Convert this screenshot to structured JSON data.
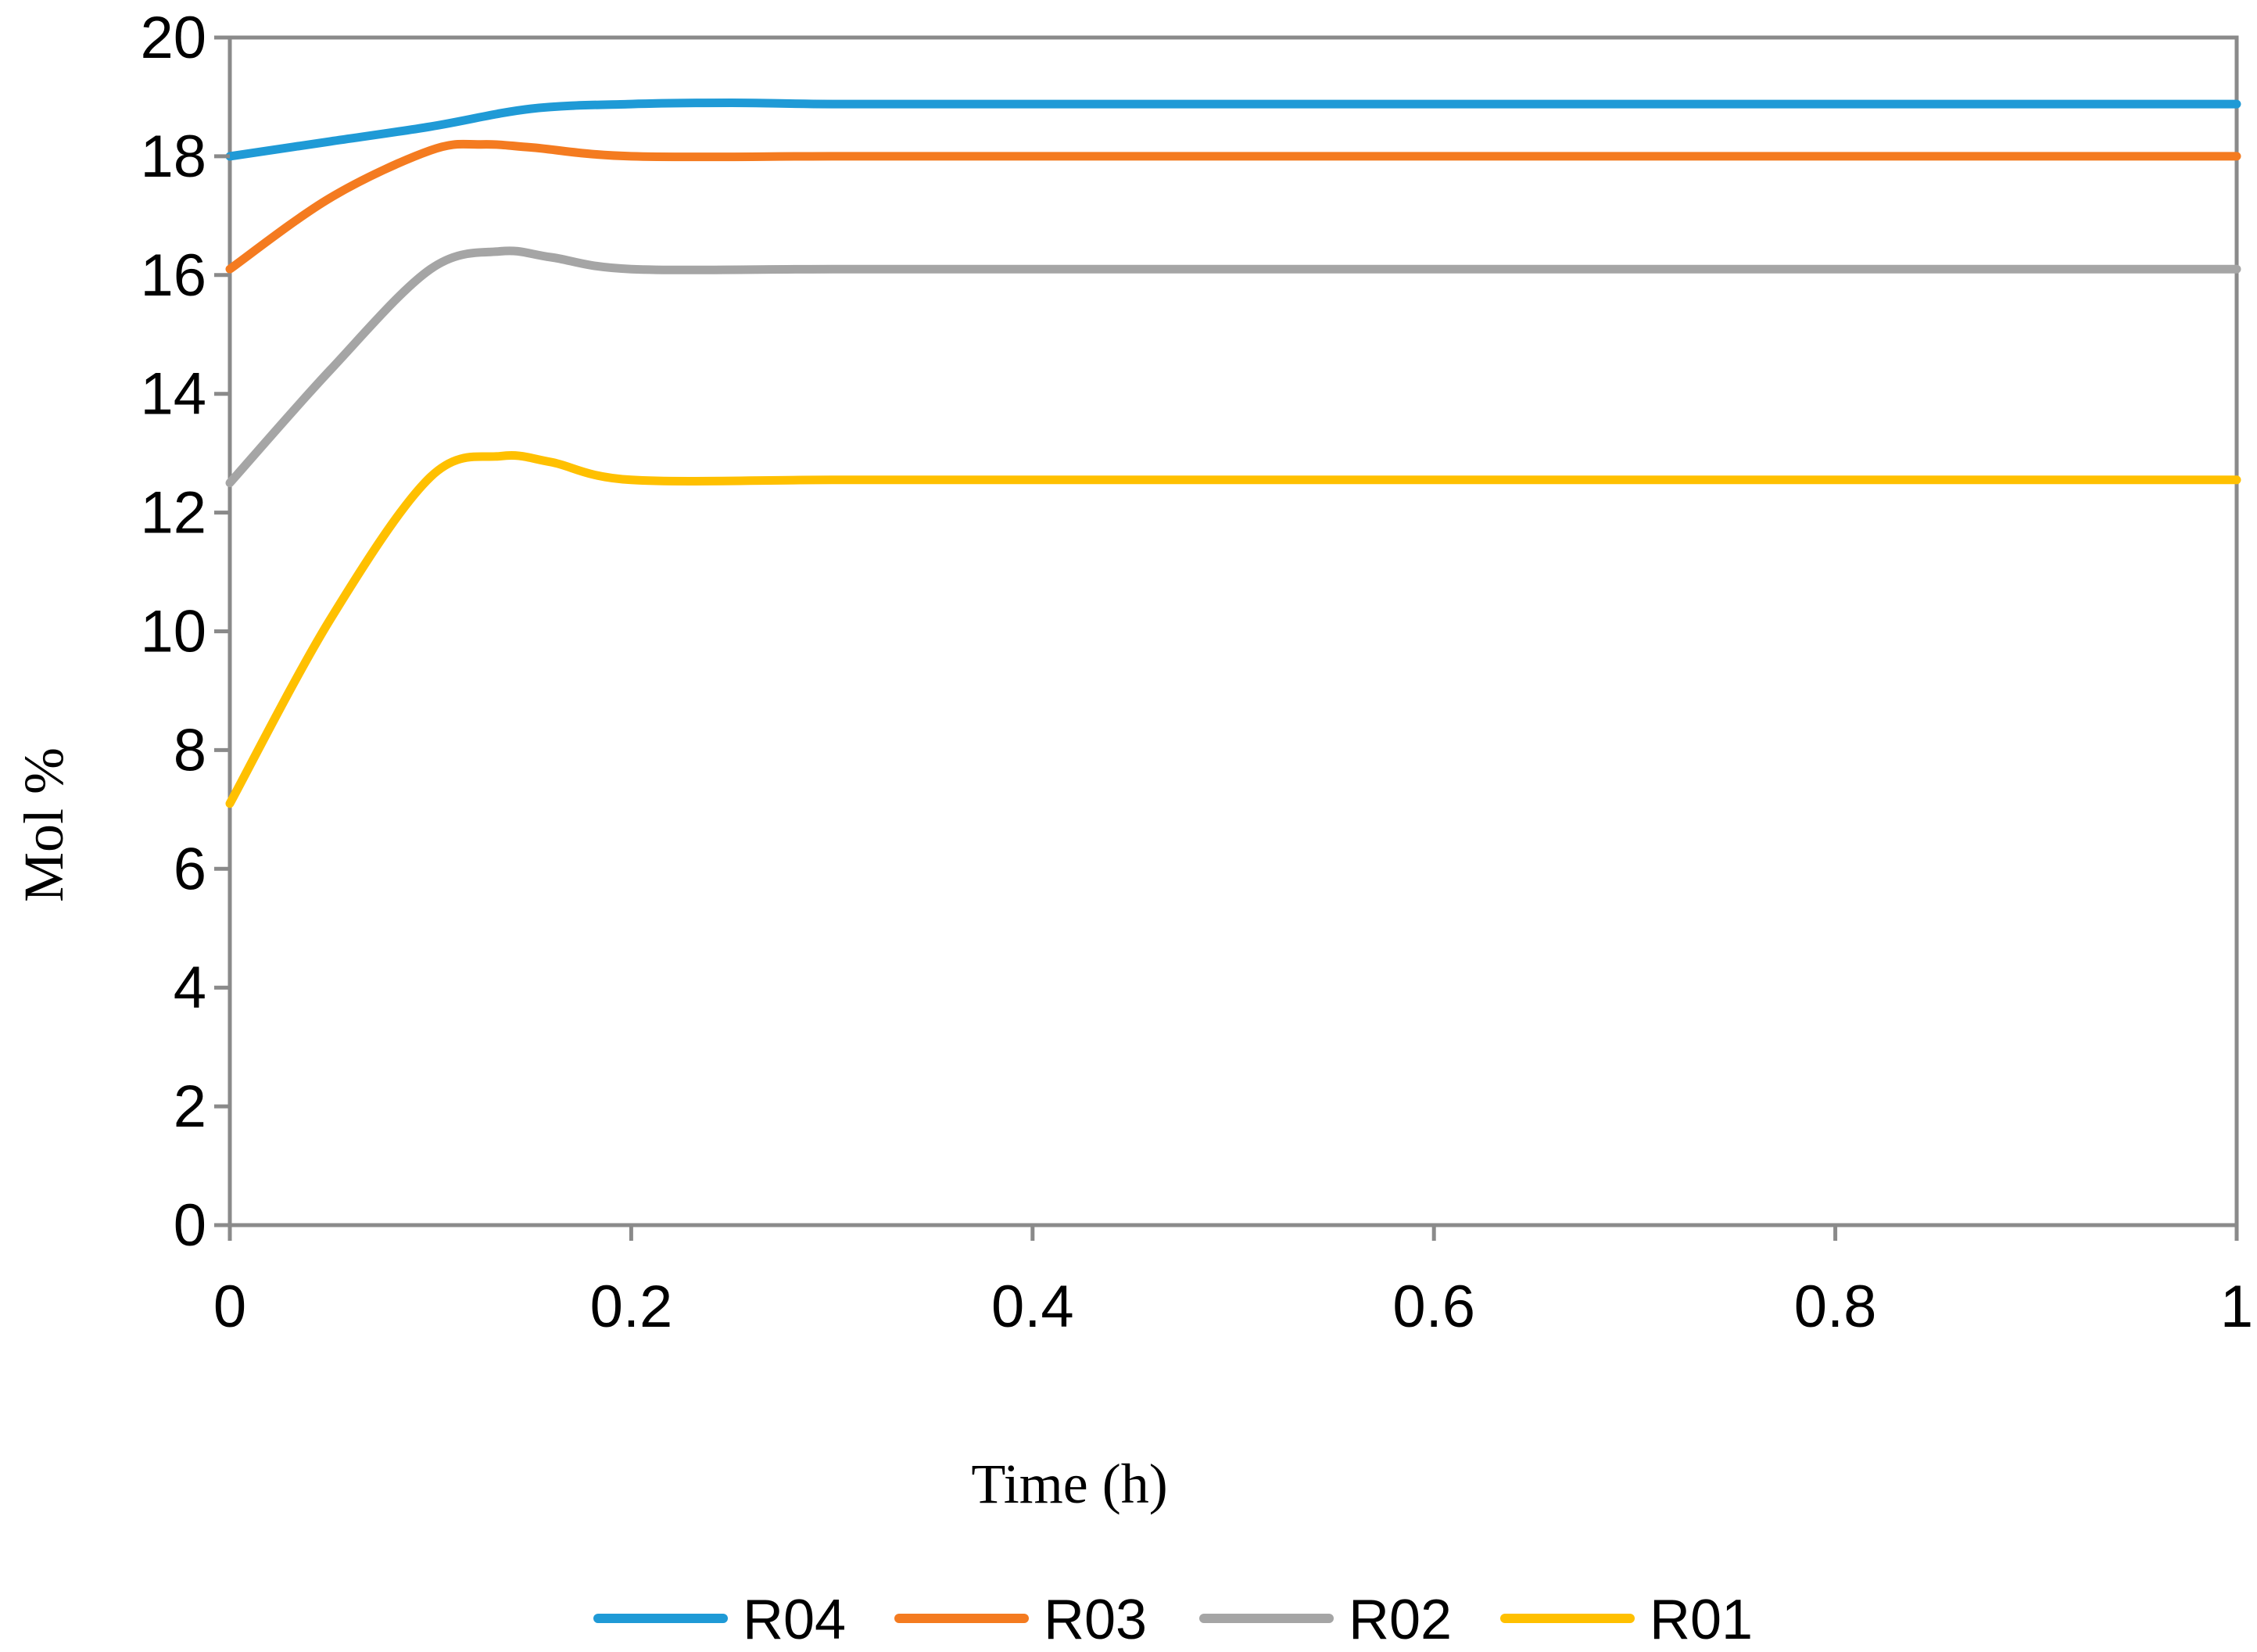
{
  "chart_data": {
    "type": "line",
    "title": "",
    "xlabel": "Time (h)",
    "ylabel": "Mol %",
    "xlim": [
      0,
      1
    ],
    "ylim": [
      0,
      20
    ],
    "xticks": [
      0,
      0.2,
      0.4,
      0.6,
      0.8,
      1
    ],
    "xtick_labels": [
      "0",
      "0.2",
      "0.4",
      "0.6",
      "0.8",
      "1"
    ],
    "yticks": [
      0,
      2,
      4,
      6,
      8,
      10,
      12,
      14,
      16,
      18,
      20
    ],
    "ytick_labels": [
      "0",
      "2",
      "4",
      "6",
      "8",
      "10",
      "12",
      "14",
      "16",
      "18",
      "20"
    ],
    "grid": false,
    "legend_position": "bottom",
    "series": [
      {
        "name": "R04",
        "color": "#1F9AD6",
        "x": [
          0,
          0.05,
          0.1,
          0.15,
          0.2,
          0.25,
          0.3,
          0.4,
          0.6,
          0.8,
          1.0
        ],
        "y": [
          18.0,
          18.25,
          18.5,
          18.8,
          18.88,
          18.9,
          18.88,
          18.88,
          18.88,
          18.88,
          18.88
        ]
      },
      {
        "name": "R03",
        "color": "#F47B20",
        "x": [
          0,
          0.05,
          0.1,
          0.125,
          0.15,
          0.2,
          0.3,
          0.4,
          0.6,
          0.8,
          1.0
        ],
        "y": [
          16.1,
          17.3,
          18.1,
          18.2,
          18.15,
          18.0,
          18.0,
          18.0,
          18.0,
          18.0,
          18.0
        ]
      },
      {
        "name": "R02",
        "color": "#A5A5A5",
        "x": [
          0,
          0.05,
          0.1,
          0.135,
          0.16,
          0.2,
          0.3,
          0.4,
          0.6,
          0.8,
          1.0
        ],
        "y": [
          12.5,
          14.4,
          16.1,
          16.4,
          16.3,
          16.1,
          16.1,
          16.1,
          16.1,
          16.1,
          16.1
        ]
      },
      {
        "name": "R01",
        "color": "#FFC000",
        "x": [
          0,
          0.05,
          0.1,
          0.135,
          0.16,
          0.2,
          0.3,
          0.4,
          0.6,
          0.8,
          1.0
        ],
        "y": [
          7.1,
          10.2,
          12.6,
          12.95,
          12.85,
          12.55,
          12.55,
          12.55,
          12.55,
          12.55,
          12.55
        ]
      }
    ]
  }
}
